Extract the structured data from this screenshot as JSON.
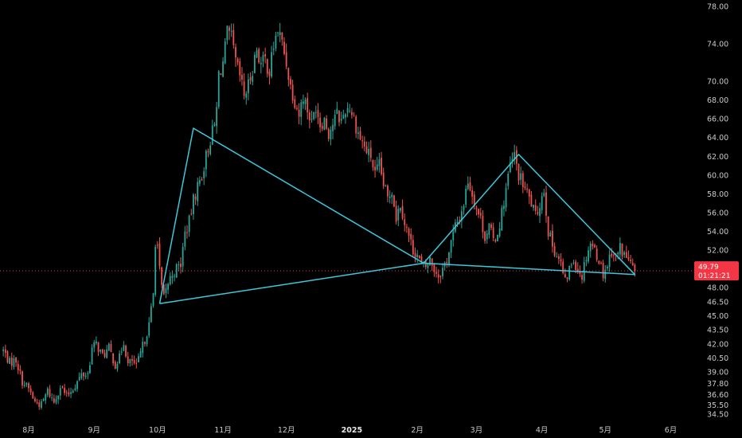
{
  "chart_data": {
    "type": "candlestick",
    "ylim": [
      34.0,
      78.5
    ],
    "y_ticks": [
      "78.00",
      "74.00",
      "70.00",
      "68.00",
      "66.00",
      "64.00",
      "62.00",
      "60.00",
      "58.00",
      "56.00",
      "54.00",
      "52.00",
      "48.00",
      "46.50",
      "45.00",
      "43.50",
      "42.00",
      "40.50",
      "39.00",
      "37.80",
      "36.60",
      "35.50",
      "34.50"
    ],
    "x_ticks": [
      {
        "label": "8月",
        "day": 0,
        "bold": false
      },
      {
        "label": "9月",
        "day": 31,
        "bold": false
      },
      {
        "label": "10月",
        "day": 61,
        "bold": false
      },
      {
        "label": "11月",
        "day": 92,
        "bold": false
      },
      {
        "label": "12月",
        "day": 122,
        "bold": false
      },
      {
        "label": "2025",
        "day": 153,
        "bold": true
      },
      {
        "label": "2月",
        "day": 184,
        "bold": false
      },
      {
        "label": "3月",
        "day": 212,
        "bold": false
      },
      {
        "label": "4月",
        "day": 243,
        "bold": false
      },
      {
        "label": "5月",
        "day": 273,
        "bold": false
      },
      {
        "label": "6月",
        "day": 304,
        "bold": false
      }
    ],
    "x_day_range": [
      -12,
      315
    ],
    "up_color": "#26a69a",
    "down_color": "#ef5350",
    "pattern_color": "#3cc8dc",
    "current_price": {
      "price": "49.79",
      "countdown": "01:21:21",
      "value": 49.79,
      "color": "#f23645"
    },
    "price_path": [
      [
        -12,
        41.3
      ],
      [
        -9,
        40.0
      ],
      [
        -6,
        40.3
      ],
      [
        -3,
        38.0
      ],
      [
        0,
        37.2
      ],
      [
        3,
        35.8
      ],
      [
        6,
        35.5
      ],
      [
        9,
        37.0
      ],
      [
        12,
        35.8
      ],
      [
        15,
        37.5
      ],
      [
        18,
        36.4
      ],
      [
        22,
        37.6
      ],
      [
        25,
        38.7
      ],
      [
        28,
        38.8
      ],
      [
        30,
        41.5
      ],
      [
        32,
        42.0
      ],
      [
        35,
        40.7
      ],
      [
        38,
        41.5
      ],
      [
        41,
        39.8
      ],
      [
        43,
        40.5
      ],
      [
        45,
        42.3
      ],
      [
        47,
        39.8
      ],
      [
        49,
        40.2
      ],
      [
        51,
        39.5
      ],
      [
        53,
        41.0
      ],
      [
        55,
        42.5
      ],
      [
        57,
        44.0
      ],
      [
        59,
        47.3
      ],
      [
        60,
        53.0
      ],
      [
        61,
        52.5
      ],
      [
        62,
        49.8
      ],
      [
        63,
        48.0
      ],
      [
        64,
        46.8
      ],
      [
        66,
        48.5
      ],
      [
        68,
        49.5
      ],
      [
        70,
        50.0
      ],
      [
        72,
        50.5
      ],
      [
        74,
        53.8
      ],
      [
        76,
        55.0
      ],
      [
        78,
        57.3
      ],
      [
        80,
        58.8
      ],
      [
        82,
        60.0
      ],
      [
        84,
        62.0
      ],
      [
        86,
        63.8
      ],
      [
        88,
        65.3
      ],
      [
        89,
        67.0
      ],
      [
        90,
        70.8
      ],
      [
        92,
        72.0
      ],
      [
        94,
        75.0
      ],
      [
        96,
        74.5
      ],
      [
        98,
        72.0
      ],
      [
        100,
        70.5
      ],
      [
        102,
        68.5
      ],
      [
        104,
        69.5
      ],
      [
        106,
        71.5
      ],
      [
        108,
        73.5
      ],
      [
        110,
        71.8
      ],
      [
        112,
        72.3
      ],
      [
        114,
        71.0
      ],
      [
        116,
        73.8
      ],
      [
        118,
        75.5
      ],
      [
        120,
        74.0
      ],
      [
        122,
        72.0
      ],
      [
        124,
        69.5
      ],
      [
        126,
        68.0
      ],
      [
        128,
        66.5
      ],
      [
        130,
        68.5
      ],
      [
        132,
        67.0
      ],
      [
        134,
        65.5
      ],
      [
        136,
        67.5
      ],
      [
        138,
        65.5
      ],
      [
        140,
        66.0
      ],
      [
        142,
        64.5
      ],
      [
        144,
        65.5
      ],
      [
        146,
        66.5
      ],
      [
        148,
        65.8
      ],
      [
        150,
        67.0
      ],
      [
        152,
        67.3
      ],
      [
        154,
        66.0
      ],
      [
        156,
        64.5
      ],
      [
        158,
        63.5
      ],
      [
        160,
        62.5
      ],
      [
        162,
        62.0
      ],
      [
        164,
        60.0
      ],
      [
        166,
        61.0
      ],
      [
        168,
        59.0
      ],
      [
        170,
        57.5
      ],
      [
        172,
        58.5
      ],
      [
        174,
        55.5
      ],
      [
        176,
        57.0
      ],
      [
        178,
        55.0
      ],
      [
        180,
        53.5
      ],
      [
        182,
        52.0
      ],
      [
        184,
        51.5
      ],
      [
        186,
        50.3
      ],
      [
        188,
        50.2
      ],
      [
        190,
        51.0
      ],
      [
        192,
        50.0
      ],
      [
        194,
        49.3
      ],
      [
        196,
        50.0
      ],
      [
        198,
        51.0
      ],
      [
        200,
        52.8
      ],
      [
        202,
        54.5
      ],
      [
        204,
        55.5
      ],
      [
        206,
        57.0
      ],
      [
        208,
        59.5
      ],
      [
        210,
        58.0
      ],
      [
        212,
        56.5
      ],
      [
        214,
        55.3
      ],
      [
        216,
        53.5
      ],
      [
        218,
        54.5
      ],
      [
        220,
        53.0
      ],
      [
        222,
        53.8
      ],
      [
        224,
        56.0
      ],
      [
        226,
        58.5
      ],
      [
        228,
        61.0
      ],
      [
        230,
        62.0
      ],
      [
        232,
        60.0
      ],
      [
        234,
        59.0
      ],
      [
        236,
        58.0
      ],
      [
        238,
        57.0
      ],
      [
        240,
        55.5
      ],
      [
        242,
        57.0
      ],
      [
        244,
        58.5
      ],
      [
        246,
        54.0
      ],
      [
        248,
        52.5
      ],
      [
        250,
        51.5
      ],
      [
        252,
        50.5
      ],
      [
        254,
        48.5
      ],
      [
        256,
        50.0
      ],
      [
        258,
        51.0
      ],
      [
        260,
        50.0
      ],
      [
        262,
        49.3
      ],
      [
        264,
        51.5
      ],
      [
        266,
        52.8
      ],
      [
        268,
        52.0
      ],
      [
        270,
        51.0
      ],
      [
        272,
        49.5
      ],
      [
        274,
        50.5
      ],
      [
        276,
        52.0
      ],
      [
        278,
        51.2
      ],
      [
        280,
        52.3
      ],
      [
        282,
        51.5
      ],
      [
        284,
        51.0
      ],
      [
        286,
        50.0
      ],
      [
        287,
        49.79
      ]
    ],
    "patterns": [
      {
        "name": "wedge-left",
        "points": [
          [
            62,
            46.3
          ],
          [
            78,
            65.0
          ],
          [
            187,
            50.6
          ],
          [
            62,
            46.3
          ]
        ]
      },
      {
        "name": "triangle-right",
        "points": [
          [
            187,
            50.6
          ],
          [
            232,
            62.2
          ],
          [
            287,
            49.4
          ],
          [
            187,
            50.6
          ]
        ]
      }
    ]
  }
}
